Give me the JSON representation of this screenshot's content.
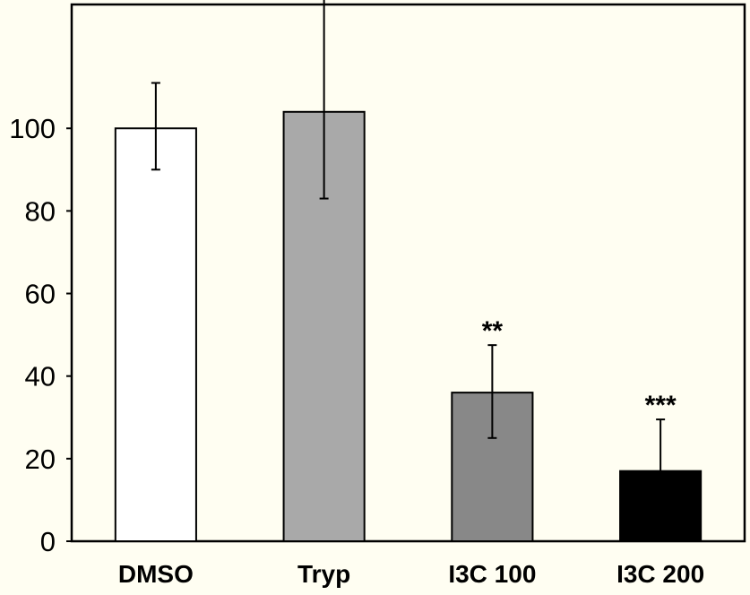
{
  "chart_data": {
    "type": "bar",
    "title": "",
    "xlabel": "",
    "ylabel": "",
    "categories": [
      "DMSO",
      "Tryp",
      "I3C 100",
      "I3C 200"
    ],
    "values": [
      100,
      104,
      36,
      17
    ],
    "errors": [
      [
        90,
        111
      ],
      [
        83,
        135
      ],
      [
        25,
        47.5
      ],
      [
        null,
        29.5
      ]
    ],
    "significance": [
      "",
      "",
      "**",
      "***"
    ],
    "colors": [
      "#ffffff",
      "#a9a9a9",
      "#888888",
      "#000000"
    ],
    "ylim": [
      0,
      130
    ],
    "yticks": [
      0,
      20,
      40,
      60,
      80,
      100
    ],
    "grid": false,
    "legend": "none"
  }
}
